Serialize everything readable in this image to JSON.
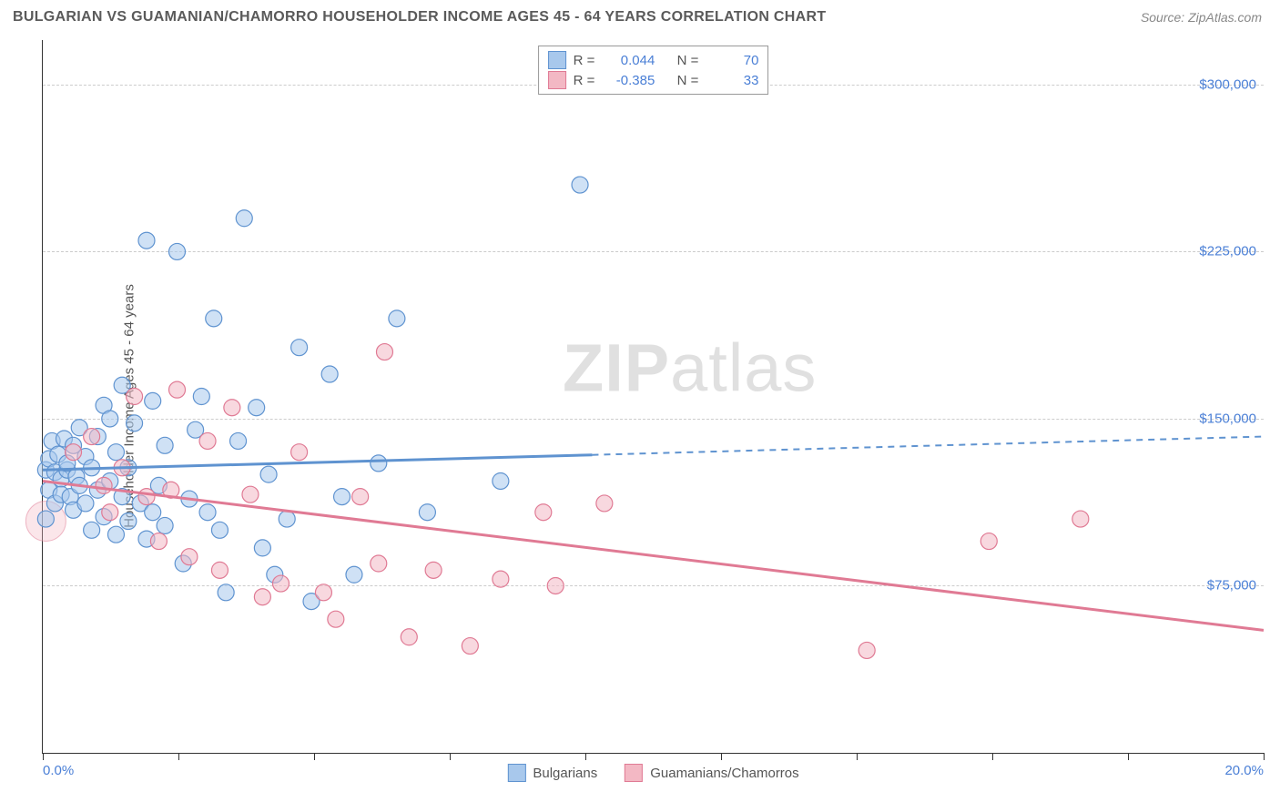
{
  "title": "BULGARIAN VS GUAMANIAN/CHAMORRO HOUSEHOLDER INCOME AGES 45 - 64 YEARS CORRELATION CHART",
  "source": "Source: ZipAtlas.com",
  "ylabel": "Householder Income Ages 45 - 64 years",
  "watermark_a": "ZIP",
  "watermark_b": "atlas",
  "chart": {
    "type": "scatter",
    "xlim": [
      0,
      20
    ],
    "ylim": [
      0,
      320000
    ],
    "x_min_label": "0.0%",
    "x_max_label": "20.0%",
    "y_ticks": [
      75000,
      150000,
      225000,
      300000
    ],
    "y_tick_labels": [
      "$75,000",
      "$150,000",
      "$225,000",
      "$300,000"
    ],
    "x_tick_positions": [
      0,
      2.22,
      4.44,
      6.67,
      8.89,
      11.11,
      13.33,
      15.56,
      17.78,
      20
    ],
    "grid_color": "#cccccc",
    "background_color": "#ffffff",
    "axis_color": "#333333",
    "series": [
      {
        "name": "Bulgarians",
        "fill": "#a8c8ec",
        "stroke": "#5f93d0",
        "fill_opacity": 0.55,
        "marker_r": 9,
        "R": "0.044",
        "N": "70",
        "trend": {
          "y0": 127000,
          "y20": 142000,
          "solid_until_x": 9.0
        },
        "points": [
          [
            0.05,
            127000
          ],
          [
            0.1,
            132000
          ],
          [
            0.1,
            118000
          ],
          [
            0.15,
            140000
          ],
          [
            0.2,
            126000
          ],
          [
            0.2,
            112000
          ],
          [
            0.25,
            134000
          ],
          [
            0.3,
            123000
          ],
          [
            0.3,
            116000
          ],
          [
            0.35,
            141000
          ],
          [
            0.4,
            127000
          ],
          [
            0.4,
            130000
          ],
          [
            0.45,
            115000
          ],
          [
            0.5,
            138000
          ],
          [
            0.5,
            109000
          ],
          [
            0.55,
            124000
          ],
          [
            0.6,
            120000
          ],
          [
            0.6,
            146000
          ],
          [
            0.7,
            112000
          ],
          [
            0.7,
            133000
          ],
          [
            0.8,
            128000
          ],
          [
            0.8,
            100000
          ],
          [
            0.9,
            118000
          ],
          [
            0.9,
            142000
          ],
          [
            1.0,
            106000
          ],
          [
            1.0,
            156000
          ],
          [
            1.1,
            150000
          ],
          [
            1.1,
            122000
          ],
          [
            1.2,
            98000
          ],
          [
            1.2,
            135000
          ],
          [
            1.3,
            115000
          ],
          [
            1.3,
            165000
          ],
          [
            1.4,
            104000
          ],
          [
            1.4,
            128000
          ],
          [
            1.5,
            148000
          ],
          [
            1.6,
            112000
          ],
          [
            1.7,
            96000
          ],
          [
            1.7,
            230000
          ],
          [
            1.8,
            158000
          ],
          [
            1.8,
            108000
          ],
          [
            1.9,
            120000
          ],
          [
            2.0,
            138000
          ],
          [
            2.0,
            102000
          ],
          [
            2.2,
            225000
          ],
          [
            2.3,
            85000
          ],
          [
            2.4,
            114000
          ],
          [
            2.5,
            145000
          ],
          [
            2.6,
            160000
          ],
          [
            2.7,
            108000
          ],
          [
            2.8,
            195000
          ],
          [
            2.9,
            100000
          ],
          [
            3.0,
            72000
          ],
          [
            3.2,
            140000
          ],
          [
            3.3,
            240000
          ],
          [
            3.5,
            155000
          ],
          [
            3.6,
            92000
          ],
          [
            3.7,
            125000
          ],
          [
            3.8,
            80000
          ],
          [
            4.0,
            105000
          ],
          [
            4.2,
            182000
          ],
          [
            4.4,
            68000
          ],
          [
            4.7,
            170000
          ],
          [
            4.9,
            115000
          ],
          [
            5.1,
            80000
          ],
          [
            5.5,
            130000
          ],
          [
            5.8,
            195000
          ],
          [
            6.3,
            108000
          ],
          [
            7.5,
            122000
          ],
          [
            8.8,
            255000
          ],
          [
            0.05,
            105000
          ]
        ]
      },
      {
        "name": "Guamanians/Chamorros",
        "fill": "#f3b8c4",
        "stroke": "#e07a94",
        "fill_opacity": 0.55,
        "marker_r": 9,
        "R": "-0.385",
        "N": "33",
        "trend": {
          "y0": 122000,
          "y20": 55000,
          "solid_until_x": 20.0
        },
        "points": [
          [
            0.5,
            135000
          ],
          [
            0.8,
            142000
          ],
          [
            1.0,
            120000
          ],
          [
            1.1,
            108000
          ],
          [
            1.3,
            128000
          ],
          [
            1.5,
            160000
          ],
          [
            1.7,
            115000
          ],
          [
            1.9,
            95000
          ],
          [
            2.1,
            118000
          ],
          [
            2.2,
            163000
          ],
          [
            2.4,
            88000
          ],
          [
            2.7,
            140000
          ],
          [
            2.9,
            82000
          ],
          [
            3.1,
            155000
          ],
          [
            3.4,
            116000
          ],
          [
            3.6,
            70000
          ],
          [
            3.9,
            76000
          ],
          [
            4.2,
            135000
          ],
          [
            4.6,
            72000
          ],
          [
            4.8,
            60000
          ],
          [
            5.2,
            115000
          ],
          [
            5.5,
            85000
          ],
          [
            5.6,
            180000
          ],
          [
            6.0,
            52000
          ],
          [
            6.4,
            82000
          ],
          [
            7.0,
            48000
          ],
          [
            7.5,
            78000
          ],
          [
            8.2,
            108000
          ],
          [
            8.4,
            75000
          ],
          [
            9.2,
            112000
          ],
          [
            13.5,
            46000
          ],
          [
            15.5,
            95000
          ],
          [
            17.0,
            105000
          ]
        ]
      }
    ]
  },
  "legend_top": {
    "r_label": "R =",
    "n_label": "N ="
  },
  "colors": {
    "tick_label": "#4a7fd6",
    "text": "#555555"
  }
}
